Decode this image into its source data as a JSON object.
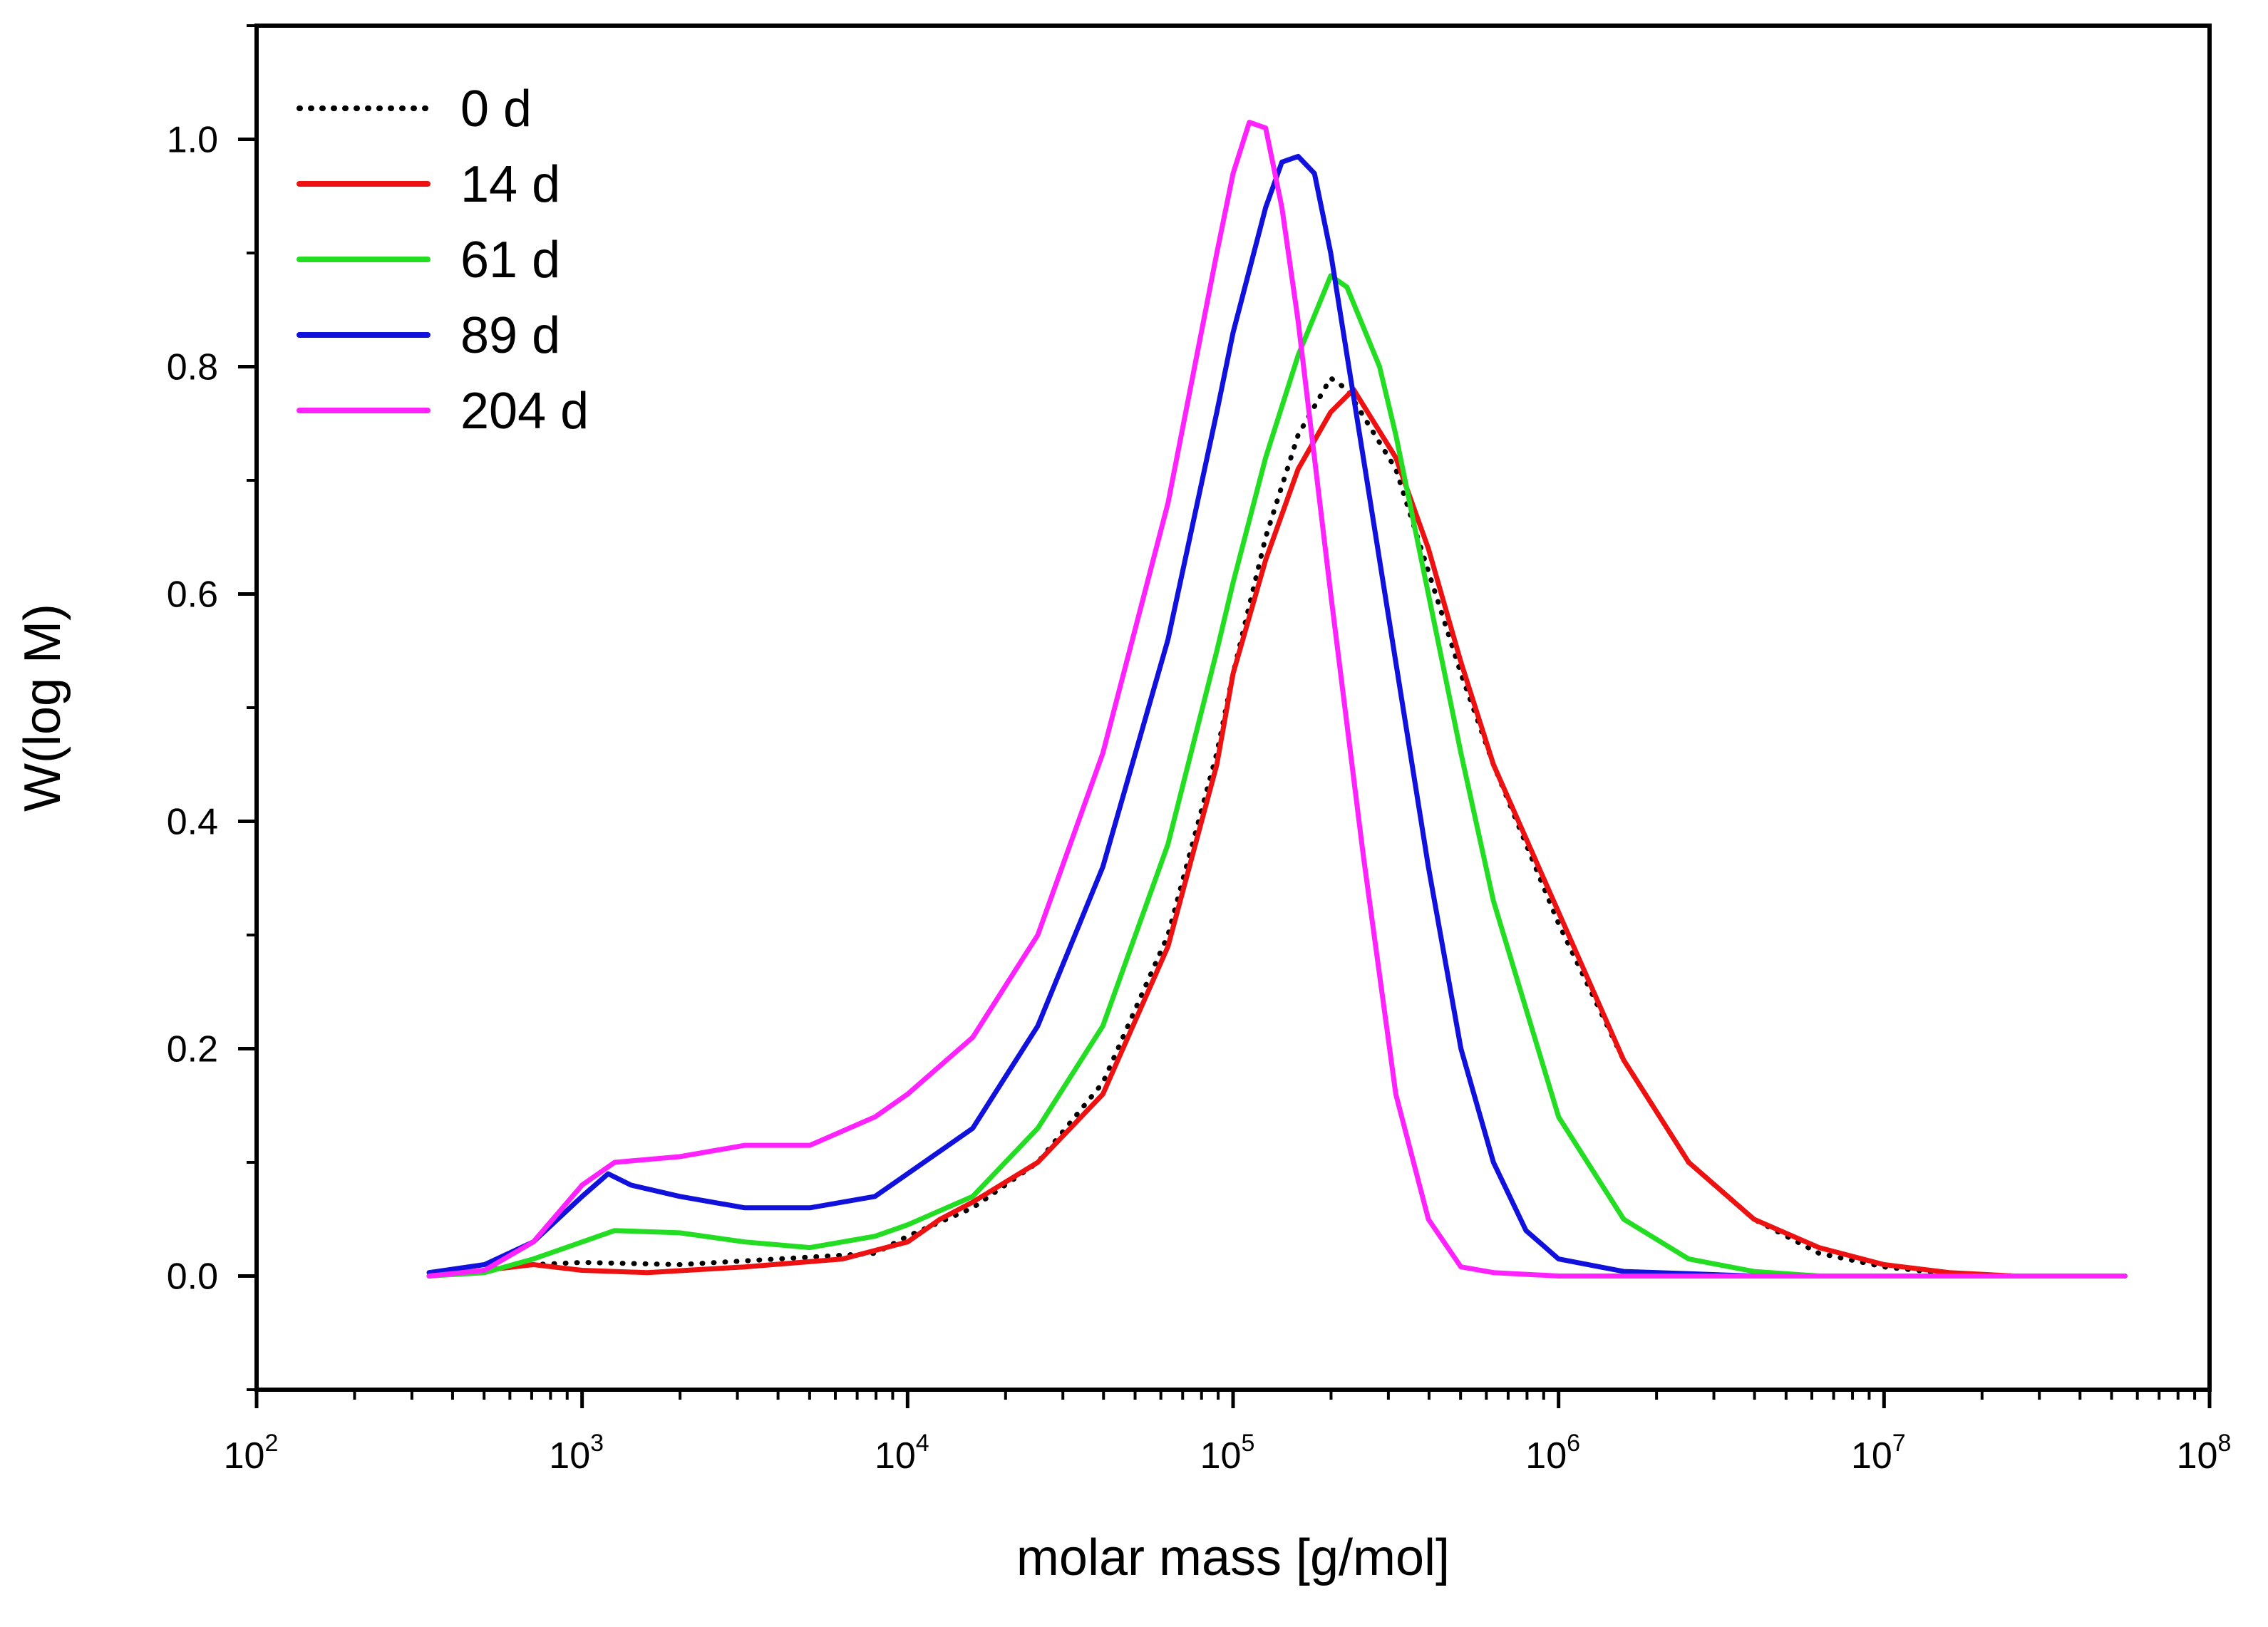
{
  "chart_data": {
    "type": "line",
    "title": "",
    "xlabel": "molar mass [g/mol]",
    "ylabel": "W(log M)",
    "x_scale": "log10",
    "xlim_log10": [
      2,
      8
    ],
    "ylim": [
      -0.1,
      1.1
    ],
    "grid": false,
    "legend_position": "top-left",
    "x_ticks": [
      {
        "base": "10",
        "exp": "2",
        "log10": 2
      },
      {
        "base": "10",
        "exp": "3",
        "log10": 3
      },
      {
        "base": "10",
        "exp": "4",
        "log10": 4
      },
      {
        "base": "10",
        "exp": "5",
        "log10": 5
      },
      {
        "base": "10",
        "exp": "6",
        "log10": 6
      },
      {
        "base": "10",
        "exp": "7",
        "log10": 7
      },
      {
        "base": "10",
        "exp": "8",
        "log10": 8
      }
    ],
    "y_ticks": [
      {
        "label": "0.0",
        "value": 0.0
      },
      {
        "label": "0.2",
        "value": 0.2
      },
      {
        "label": "0.4",
        "value": 0.4
      },
      {
        "label": "0.6",
        "value": 0.6
      },
      {
        "label": "0.8",
        "value": 0.8
      },
      {
        "label": "1.0",
        "value": 1.0
      }
    ],
    "series": [
      {
        "name": "0 d",
        "color": "#000000",
        "dash": "dotted",
        "points": [
          [
            2.53,
            0.0
          ],
          [
            2.7,
            0.005
          ],
          [
            2.85,
            0.01
          ],
          [
            3.0,
            0.012
          ],
          [
            3.3,
            0.01
          ],
          [
            3.6,
            0.015
          ],
          [
            3.9,
            0.02
          ],
          [
            4.0,
            0.035
          ],
          [
            4.2,
            0.06
          ],
          [
            4.4,
            0.1
          ],
          [
            4.6,
            0.17
          ],
          [
            4.8,
            0.3
          ],
          [
            4.95,
            0.46
          ],
          [
            5.0,
            0.53
          ],
          [
            5.1,
            0.65
          ],
          [
            5.2,
            0.74
          ],
          [
            5.3,
            0.79
          ],
          [
            5.35,
            0.78
          ],
          [
            5.5,
            0.71
          ],
          [
            5.6,
            0.62
          ],
          [
            5.7,
            0.53
          ],
          [
            5.8,
            0.45
          ],
          [
            6.0,
            0.31
          ],
          [
            6.2,
            0.19
          ],
          [
            6.4,
            0.1
          ],
          [
            6.6,
            0.05
          ],
          [
            6.8,
            0.02
          ],
          [
            7.0,
            0.008
          ],
          [
            7.2,
            0.002
          ],
          [
            7.4,
            0.0
          ],
          [
            7.74,
            0.0
          ]
        ]
      },
      {
        "name": "14 d",
        "color": "#ee1111",
        "dash": "solid",
        "points": [
          [
            2.53,
            0.0
          ],
          [
            2.7,
            0.005
          ],
          [
            2.85,
            0.01
          ],
          [
            3.0,
            0.005
          ],
          [
            3.2,
            0.003
          ],
          [
            3.5,
            0.008
          ],
          [
            3.8,
            0.015
          ],
          [
            4.0,
            0.03
          ],
          [
            4.1,
            0.05
          ],
          [
            4.2,
            0.065
          ],
          [
            4.4,
            0.1
          ],
          [
            4.6,
            0.16
          ],
          [
            4.8,
            0.29
          ],
          [
            4.95,
            0.45
          ],
          [
            5.0,
            0.53
          ],
          [
            5.1,
            0.63
          ],
          [
            5.2,
            0.71
          ],
          [
            5.3,
            0.76
          ],
          [
            5.37,
            0.78
          ],
          [
            5.5,
            0.72
          ],
          [
            5.6,
            0.64
          ],
          [
            5.7,
            0.54
          ],
          [
            5.8,
            0.45
          ],
          [
            6.0,
            0.32
          ],
          [
            6.2,
            0.19
          ],
          [
            6.4,
            0.1
          ],
          [
            6.6,
            0.05
          ],
          [
            6.8,
            0.025
          ],
          [
            7.0,
            0.01
          ],
          [
            7.2,
            0.003
          ],
          [
            7.4,
            0.0
          ],
          [
            7.74,
            0.0
          ]
        ]
      },
      {
        "name": "61 d",
        "color": "#22dd22",
        "dash": "solid",
        "points": [
          [
            2.53,
            0.0
          ],
          [
            2.7,
            0.003
          ],
          [
            2.85,
            0.015
          ],
          [
            3.0,
            0.03
          ],
          [
            3.1,
            0.04
          ],
          [
            3.3,
            0.038
          ],
          [
            3.5,
            0.03
          ],
          [
            3.7,
            0.025
          ],
          [
            3.9,
            0.035
          ],
          [
            4.0,
            0.045
          ],
          [
            4.2,
            0.07
          ],
          [
            4.4,
            0.13
          ],
          [
            4.6,
            0.22
          ],
          [
            4.8,
            0.38
          ],
          [
            4.95,
            0.55
          ],
          [
            5.0,
            0.61
          ],
          [
            5.1,
            0.72
          ],
          [
            5.2,
            0.81
          ],
          [
            5.3,
            0.88
          ],
          [
            5.35,
            0.87
          ],
          [
            5.45,
            0.8
          ],
          [
            5.5,
            0.74
          ],
          [
            5.6,
            0.6
          ],
          [
            5.7,
            0.46
          ],
          [
            5.8,
            0.33
          ],
          [
            6.0,
            0.14
          ],
          [
            6.2,
            0.05
          ],
          [
            6.4,
            0.015
          ],
          [
            6.6,
            0.004
          ],
          [
            6.8,
            0.0
          ],
          [
            7.74,
            0.0
          ]
        ]
      },
      {
        "name": "89 d",
        "color": "#1111dd",
        "dash": "solid",
        "points": [
          [
            2.53,
            0.003
          ],
          [
            2.7,
            0.01
          ],
          [
            2.85,
            0.03
          ],
          [
            3.0,
            0.07
          ],
          [
            3.08,
            0.09
          ],
          [
            3.15,
            0.08
          ],
          [
            3.3,
            0.07
          ],
          [
            3.5,
            0.06
          ],
          [
            3.7,
            0.06
          ],
          [
            3.9,
            0.07
          ],
          [
            4.0,
            0.09
          ],
          [
            4.2,
            0.13
          ],
          [
            4.4,
            0.22
          ],
          [
            4.6,
            0.36
          ],
          [
            4.8,
            0.56
          ],
          [
            4.95,
            0.76
          ],
          [
            5.0,
            0.83
          ],
          [
            5.1,
            0.94
          ],
          [
            5.15,
            0.98
          ],
          [
            5.2,
            0.985
          ],
          [
            5.25,
            0.97
          ],
          [
            5.3,
            0.9
          ],
          [
            5.4,
            0.72
          ],
          [
            5.5,
            0.54
          ],
          [
            5.6,
            0.36
          ],
          [
            5.7,
            0.2
          ],
          [
            5.8,
            0.1
          ],
          [
            5.9,
            0.04
          ],
          [
            6.0,
            0.015
          ],
          [
            6.2,
            0.004
          ],
          [
            6.4,
            0.002
          ],
          [
            6.6,
            0.0
          ],
          [
            7.74,
            0.0
          ]
        ]
      },
      {
        "name": "204 d",
        "color": "#ff22ff",
        "dash": "solid",
        "points": [
          [
            2.53,
            0.0
          ],
          [
            2.7,
            0.005
          ],
          [
            2.85,
            0.03
          ],
          [
            3.0,
            0.08
          ],
          [
            3.1,
            0.1
          ],
          [
            3.3,
            0.105
          ],
          [
            3.5,
            0.115
          ],
          [
            3.7,
            0.115
          ],
          [
            3.9,
            0.14
          ],
          [
            4.0,
            0.16
          ],
          [
            4.2,
            0.21
          ],
          [
            4.4,
            0.3
          ],
          [
            4.6,
            0.46
          ],
          [
            4.8,
            0.68
          ],
          [
            4.95,
            0.9
          ],
          [
            5.0,
            0.97
          ],
          [
            5.05,
            1.015
          ],
          [
            5.1,
            1.01
          ],
          [
            5.15,
            0.94
          ],
          [
            5.2,
            0.84
          ],
          [
            5.3,
            0.6
          ],
          [
            5.4,
            0.37
          ],
          [
            5.5,
            0.16
          ],
          [
            5.6,
            0.05
          ],
          [
            5.7,
            0.008
          ],
          [
            5.8,
            0.003
          ],
          [
            6.0,
            0.0
          ],
          [
            7.74,
            0.0
          ]
        ]
      }
    ]
  }
}
